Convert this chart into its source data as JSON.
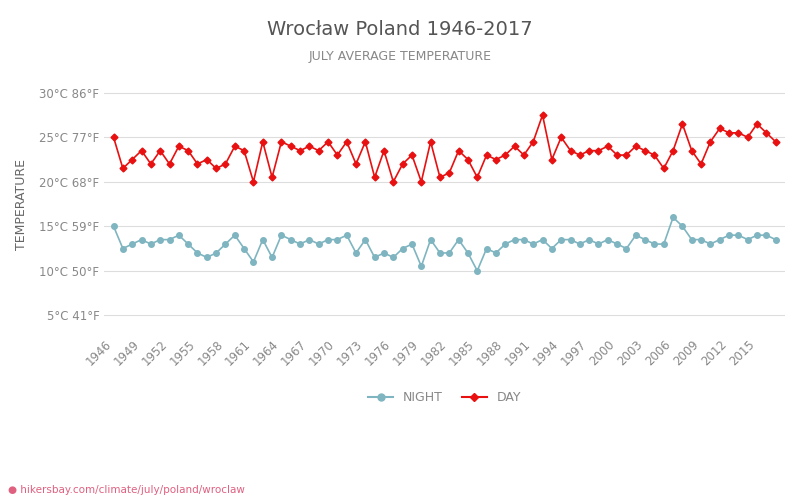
{
  "title": "Wrocław Poland 1946-2017",
  "subtitle": "JULY AVERAGE TEMPERATURE",
  "ylabel": "TEMPERATURE",
  "website": "hikersbay.com/climate/july/poland/wroclaw",
  "years": [
    1946,
    1947,
    1948,
    1949,
    1950,
    1951,
    1952,
    1953,
    1954,
    1955,
    1956,
    1957,
    1958,
    1959,
    1960,
    1961,
    1962,
    1963,
    1964,
    1965,
    1966,
    1967,
    1968,
    1969,
    1970,
    1971,
    1972,
    1973,
    1974,
    1975,
    1976,
    1977,
    1978,
    1979,
    1980,
    1981,
    1982,
    1983,
    1984,
    1985,
    1986,
    1987,
    1988,
    1989,
    1990,
    1991,
    1992,
    1993,
    1994,
    1995,
    1996,
    1997,
    1998,
    1999,
    2000,
    2001,
    2002,
    2003,
    2004,
    2005,
    2006,
    2007,
    2008,
    2009,
    2010,
    2011,
    2012,
    2013,
    2014,
    2015,
    2016,
    2017
  ],
  "day_temps": [
    25.0,
    21.5,
    22.5,
    23.5,
    22.0,
    23.5,
    22.0,
    24.0,
    23.5,
    22.0,
    22.5,
    21.5,
    22.0,
    24.0,
    23.5,
    20.0,
    24.5,
    20.5,
    24.5,
    24.0,
    23.5,
    24.0,
    23.5,
    24.5,
    23.0,
    24.5,
    22.0,
    24.5,
    20.5,
    23.5,
    20.0,
    22.0,
    23.0,
    20.0,
    24.5,
    20.5,
    21.0,
    23.5,
    22.5,
    20.5,
    23.0,
    22.5,
    23.0,
    24.0,
    23.0,
    24.5,
    27.5,
    22.5,
    25.0,
    23.5,
    23.0,
    23.5,
    23.5,
    24.0,
    23.0,
    23.0,
    24.0,
    23.5,
    23.0,
    21.5,
    23.5,
    26.5,
    23.5,
    22.0,
    24.5,
    26.0,
    25.5,
    25.5,
    25.0,
    26.5,
    25.5,
    24.5
  ],
  "night_temps": [
    15.0,
    12.5,
    13.0,
    13.5,
    13.0,
    13.5,
    13.5,
    14.0,
    13.0,
    12.0,
    11.5,
    12.0,
    13.0,
    14.0,
    12.5,
    11.0,
    13.5,
    11.5,
    14.0,
    13.5,
    13.0,
    13.5,
    13.0,
    13.5,
    13.5,
    14.0,
    12.0,
    13.5,
    11.5,
    12.0,
    11.5,
    12.5,
    13.0,
    10.5,
    13.5,
    12.0,
    12.0,
    13.5,
    12.0,
    10.0,
    12.5,
    12.0,
    13.0,
    13.5,
    13.5,
    13.0,
    13.5,
    12.5,
    13.5,
    13.5,
    13.0,
    13.5,
    13.0,
    13.5,
    13.0,
    12.5,
    14.0,
    13.5,
    13.0,
    13.0,
    16.0,
    15.0,
    13.5,
    13.5,
    13.0,
    13.5,
    14.0,
    14.0,
    13.5,
    14.0,
    14.0,
    13.5
  ],
  "day_color": "#e81010",
  "night_color": "#7fb5c0",
  "title_color": "#555555",
  "subtitle_color": "#888888",
  "ylabel_color": "#666666",
  "tick_color": "#888888",
  "grid_color": "#dddddd",
  "bg_color": "#ffffff",
  "yticks_c": [
    5,
    10,
    15,
    20,
    25,
    30
  ],
  "yticks_f": [
    41,
    50,
    59,
    68,
    77,
    86
  ],
  "ylim": [
    3,
    32
  ],
  "xtick_step": 3,
  "legend_night": "NIGHT",
  "legend_day": "DAY",
  "website_text": "● hikersbay.com/climate/july/poland/wroclaw"
}
